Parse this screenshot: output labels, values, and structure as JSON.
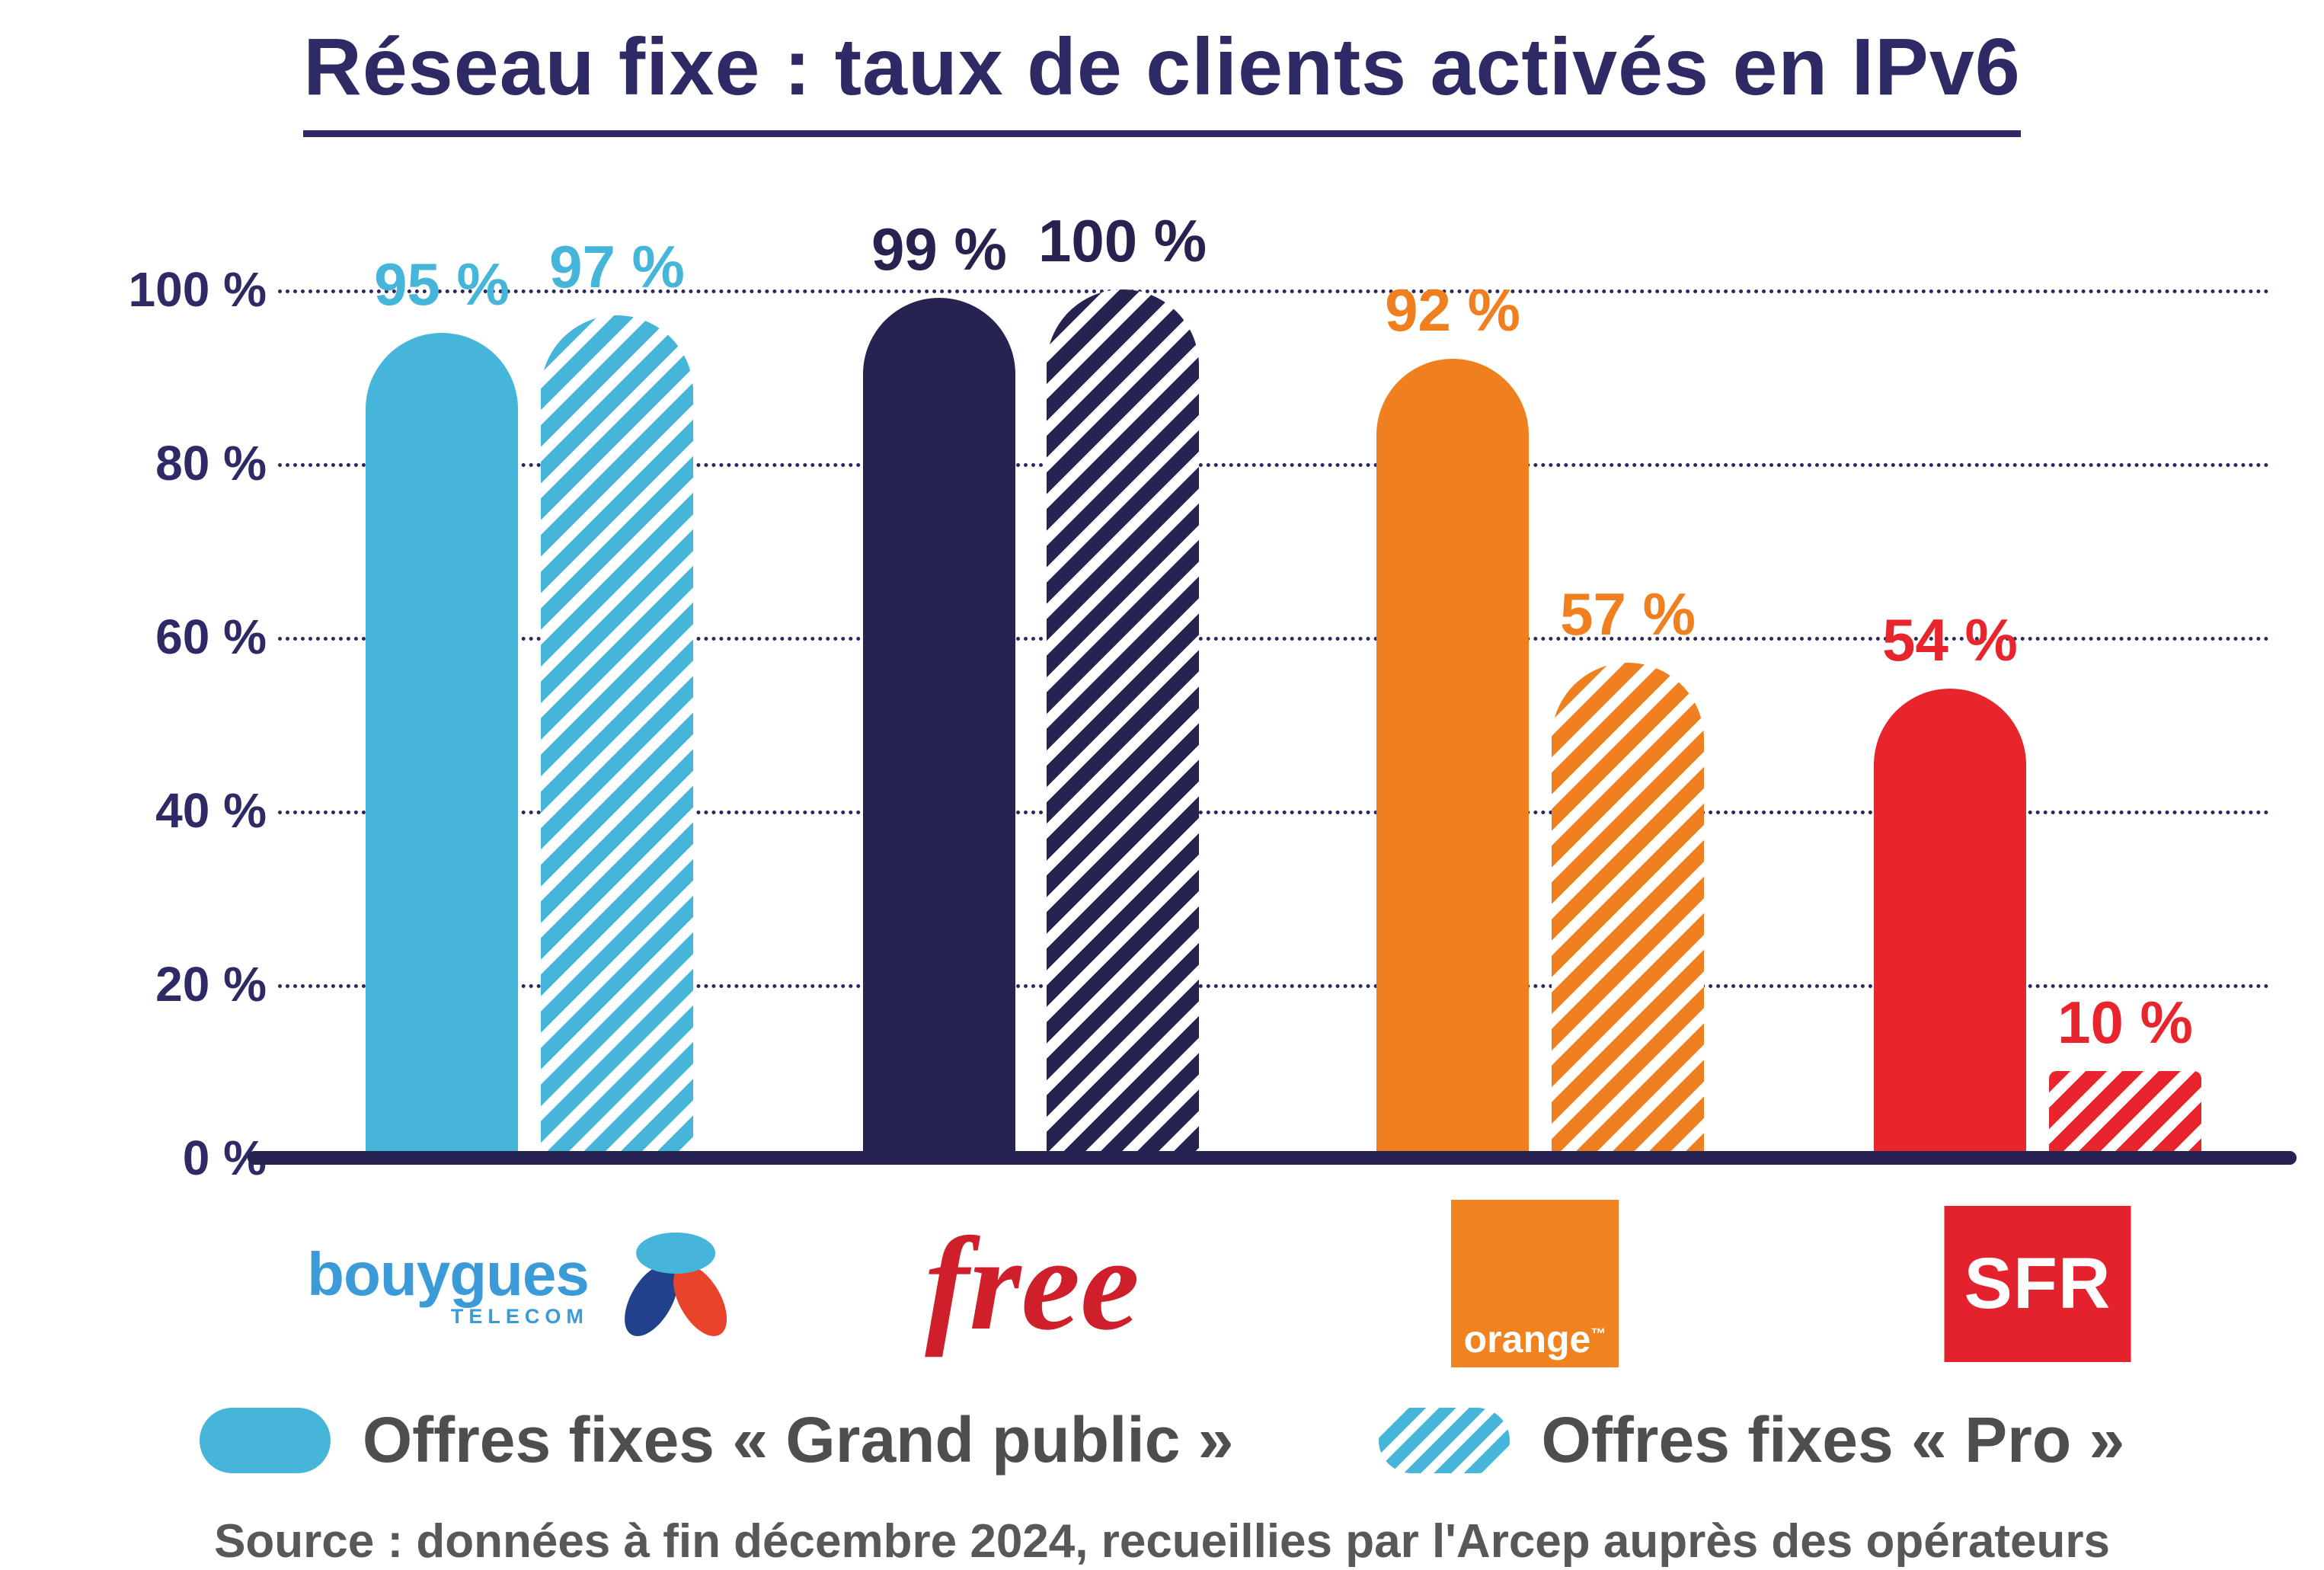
{
  "title": "Réseau fixe : taux de clients activés en IPv6",
  "chart_data": {
    "type": "bar",
    "categories": [
      "Bouygues Telecom",
      "Free",
      "Orange",
      "SFR"
    ],
    "series": [
      {
        "name": "Offres fixes « Grand public »",
        "style": "solid",
        "values": [
          95,
          99,
          92,
          54
        ],
        "labels": [
          "95 %",
          "99 %",
          "92 %",
          "54 %"
        ]
      },
      {
        "name": "Offres fixes « Pro »",
        "style": "hatched",
        "values": [
          97,
          100,
          57,
          10
        ],
        "labels": [
          "97 %",
          "100 %",
          "57 %",
          "10 %"
        ]
      }
    ],
    "category_colors": [
      "#45B5D9",
      "#262350",
      "#F0801F",
      "#E8252C"
    ],
    "ylim": [
      0,
      100
    ],
    "ytick_labels": [
      "0 %",
      "20 %",
      "40 %",
      "60 %",
      "80 %",
      "100 %"
    ],
    "grid": "horizontal-dotted",
    "legend_position": "bottom"
  },
  "legend": {
    "swatch_color": "#45B5D9",
    "items": [
      {
        "label": "Offres fixes « Grand public »",
        "swatch": "solid"
      },
      {
        "label": "Offres fixes « Pro »",
        "swatch": "hatched"
      }
    ]
  },
  "logos": {
    "bouygues": {
      "wordmark": "bouygues",
      "subtext": "TELECOM"
    },
    "free": {
      "wordmark": "free"
    },
    "orange": {
      "wordmark": "orange",
      "tm": "™"
    },
    "sfr": {
      "wordmark": "SFR"
    }
  },
  "source": "Source : données à fin décembre 2024, recueillies par l'Arcep auprès des opérateurs",
  "colors": {
    "navy": "#2E2A66",
    "light_blue": "#45B5D9",
    "dark_navy_bar": "#262350",
    "orange": "#F0801F",
    "red": "#E8252C",
    "text_gray": "#58585A"
  }
}
